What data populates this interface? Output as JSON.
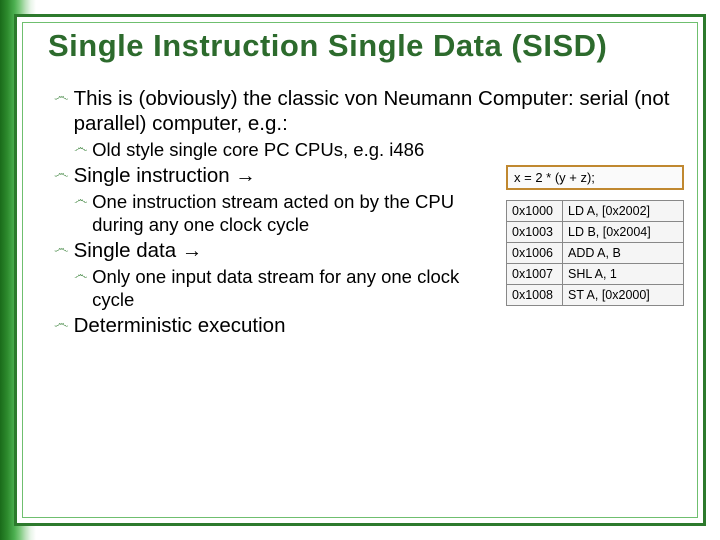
{
  "slide": {
    "title": "Single Instruction Single Data (SISD)",
    "bullets": {
      "b1": "This is (obviously) the classic von Neumann Computer: serial (not parallel) computer, e.g.:",
      "b1a": "Old style single core PC CPUs, e.g. i486",
      "b2": "Single instruction →",
      "b2a": "One instruction stream acted on by the CPU during any one clock cycle",
      "b3": "Single data →",
      "b3a": "Only one input data stream for any one clock cycle",
      "b4": "Deterministic execution"
    },
    "expr": "x = 2 * (y + z);",
    "asm": {
      "r0": {
        "addr": "0x1000",
        "instr": "LD A, [0x2002]"
      },
      "r1": {
        "addr": "0x1003",
        "instr": "LD B, [0x2004]"
      },
      "r2": {
        "addr": "0x1006",
        "instr": "ADD A, B"
      },
      "r3": {
        "addr": "0x1007",
        "instr": "SHL A, 1"
      },
      "r4": {
        "addr": "0x1008",
        "instr": "ST A, [0x2000]"
      }
    }
  },
  "colors": {
    "title": "#2d6b2d",
    "border_outer": "#2d7a2d",
    "border_inner": "#6fbf6f",
    "expr_border": "#c08830"
  }
}
